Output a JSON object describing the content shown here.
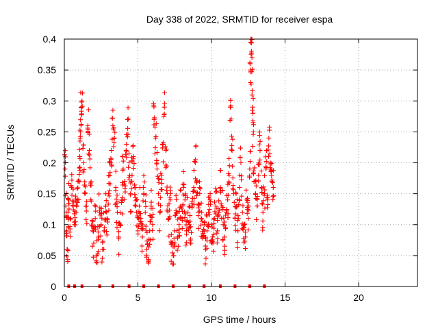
{
  "chart_data": {
    "type": "scatter",
    "title": "Day 338 of 2022, SRMTID for receiver espa",
    "xlabel": "GPS time / hours",
    "ylabel": "SRMTID / TECUs",
    "xlim": [
      0,
      24
    ],
    "ylim": [
      0,
      0.4
    ],
    "xticks": [
      0,
      5,
      10,
      15,
      20
    ],
    "xtick_labels": [
      "0",
      "5",
      "10",
      "15",
      "20"
    ],
    "yticks": [
      0,
      0.05,
      0.1,
      0.15,
      0.2,
      0.25,
      0.3,
      0.35,
      0.4
    ],
    "ytick_labels": [
      "0",
      "0.05",
      "0.1",
      "0.15",
      "0.2",
      "0.25",
      "0.3",
      "0.35",
      "0.4"
    ],
    "grid": true,
    "marker": "+",
    "color": "#ff0000",
    "data_range_hours": [
      0,
      14.25
    ],
    "zero_markers_x": [
      0.3,
      0.7,
      1.2,
      2.4,
      3.3,
      4.4,
      5.4,
      6.4,
      7.4,
      8.5,
      9.5,
      10.6,
      11.6,
      12.6,
      13.6
    ],
    "series": [
      {
        "name": "SRMTID",
        "points": [
          [
            0.05,
            0.19
          ],
          [
            0.1,
            0.13
          ],
          [
            0.15,
            0.09
          ],
          [
            0.2,
            0.06
          ],
          [
            0.25,
            0.12
          ],
          [
            0.3,
            0.14
          ],
          [
            0.4,
            0.11
          ],
          [
            0.5,
            0.16
          ],
          [
            0.6,
            0.13
          ],
          [
            0.7,
            0.1
          ],
          [
            0.8,
            0.12
          ],
          [
            0.9,
            0.14
          ],
          [
            1.0,
            0.17
          ],
          [
            1.05,
            0.21
          ],
          [
            1.1,
            0.25
          ],
          [
            1.15,
            0.29
          ],
          [
            1.2,
            0.3
          ],
          [
            1.3,
            0.2
          ],
          [
            1.4,
            0.15
          ],
          [
            1.5,
            0.13
          ],
          [
            1.6,
            0.26
          ],
          [
            1.7,
            0.22
          ],
          [
            1.8,
            0.14
          ],
          [
            1.9,
            0.09
          ],
          [
            2.0,
            0.07
          ],
          [
            2.1,
            0.11
          ],
          [
            2.2,
            0.05
          ],
          [
            2.3,
            0.08
          ],
          [
            2.4,
            0.12
          ],
          [
            2.5,
            0.1
          ],
          [
            2.6,
            0.06
          ],
          [
            2.7,
            0.09
          ],
          [
            2.8,
            0.13
          ],
          [
            2.9,
            0.11
          ],
          [
            3.0,
            0.15
          ],
          [
            3.1,
            0.18
          ],
          [
            3.2,
            0.22
          ],
          [
            3.3,
            0.26
          ],
          [
            3.4,
            0.24
          ],
          [
            3.5,
            0.16
          ],
          [
            3.6,
            0.12
          ],
          [
            3.7,
            0.08
          ],
          [
            3.8,
            0.1
          ],
          [
            3.9,
            0.14
          ],
          [
            4.0,
            0.19
          ],
          [
            4.1,
            0.17
          ],
          [
            4.2,
            0.22
          ],
          [
            4.3,
            0.27
          ],
          [
            4.4,
            0.2
          ],
          [
            4.5,
            0.15
          ],
          [
            4.6,
            0.18
          ],
          [
            4.7,
            0.21
          ],
          [
            4.8,
            0.16
          ],
          [
            4.9,
            0.12
          ],
          [
            5.0,
            0.09
          ],
          [
            5.1,
            0.13
          ],
          [
            5.2,
            0.11
          ],
          [
            5.3,
            0.08
          ],
          [
            5.4,
            0.15
          ],
          [
            5.5,
            0.12
          ],
          [
            5.6,
            0.06
          ],
          [
            5.7,
            0.04
          ],
          [
            5.8,
            0.09
          ],
          [
            5.9,
            0.13
          ],
          [
            6.0,
            0.1
          ],
          [
            6.1,
            0.27
          ],
          [
            6.2,
            0.24
          ],
          [
            6.3,
            0.19
          ],
          [
            6.4,
            0.15
          ],
          [
            6.5,
            0.12
          ],
          [
            6.6,
            0.18
          ],
          [
            6.7,
            0.23
          ],
          [
            6.8,
            0.29
          ],
          [
            6.9,
            0.22
          ],
          [
            7.0,
            0.15
          ],
          [
            7.1,
            0.11
          ],
          [
            7.2,
            0.14
          ],
          [
            7.3,
            0.07
          ],
          [
            7.4,
            0.05
          ],
          [
            7.5,
            0.09
          ],
          [
            7.6,
            0.12
          ],
          [
            7.7,
            0.08
          ],
          [
            7.8,
            0.1
          ],
          [
            7.9,
            0.13
          ],
          [
            8.0,
            0.11
          ],
          [
            8.1,
            0.16
          ],
          [
            8.2,
            0.14
          ],
          [
            8.3,
            0.09
          ],
          [
            8.4,
            0.12
          ],
          [
            8.5,
            0.1
          ],
          [
            8.6,
            0.07
          ],
          [
            8.7,
            0.13
          ],
          [
            8.8,
            0.16
          ],
          [
            8.9,
            0.2
          ],
          [
            9.0,
            0.17
          ],
          [
            9.1,
            0.12
          ],
          [
            9.2,
            0.15
          ],
          [
            9.3,
            0.11
          ],
          [
            9.4,
            0.08
          ],
          [
            9.5,
            0.1
          ],
          [
            9.6,
            0.06
          ],
          [
            9.7,
            0.09
          ],
          [
            9.8,
            0.12
          ],
          [
            9.9,
            0.14
          ],
          [
            10.0,
            0.1
          ],
          [
            10.1,
            0.07
          ],
          [
            10.2,
            0.11
          ],
          [
            10.3,
            0.13
          ],
          [
            10.4,
            0.09
          ],
          [
            10.5,
            0.12
          ],
          [
            10.6,
            0.16
          ],
          [
            10.7,
            0.13
          ],
          [
            10.8,
            0.1
          ],
          [
            10.9,
            0.08
          ],
          [
            11.0,
            0.12
          ],
          [
            11.1,
            0.14
          ],
          [
            11.2,
            0.18
          ],
          [
            11.3,
            0.29
          ],
          [
            11.4,
            0.22
          ],
          [
            11.5,
            0.15
          ],
          [
            11.6,
            0.11
          ],
          [
            11.7,
            0.13
          ],
          [
            11.8,
            0.09
          ],
          [
            11.9,
            0.16
          ],
          [
            12.0,
            0.2
          ],
          [
            12.1,
            0.12
          ],
          [
            12.2,
            0.1
          ],
          [
            12.3,
            0.08
          ],
          [
            12.4,
            0.14
          ],
          [
            12.5,
            0.11
          ],
          [
            12.6,
            0.19
          ],
          [
            12.65,
            0.35
          ],
          [
            12.7,
            0.4
          ],
          [
            12.75,
            0.37
          ],
          [
            12.8,
            0.29
          ],
          [
            12.85,
            0.25
          ],
          [
            12.9,
            0.17
          ],
          [
            13.0,
            0.15
          ],
          [
            13.1,
            0.13
          ],
          [
            13.2,
            0.18
          ],
          [
            13.3,
            0.22
          ],
          [
            13.4,
            0.16
          ],
          [
            13.5,
            0.12
          ],
          [
            13.6,
            0.15
          ],
          [
            13.7,
            0.19
          ],
          [
            13.8,
            0.14
          ],
          [
            13.9,
            0.24
          ],
          [
            14.0,
            0.2
          ],
          [
            14.1,
            0.17
          ],
          [
            14.2,
            0.16
          ]
        ]
      }
    ]
  }
}
